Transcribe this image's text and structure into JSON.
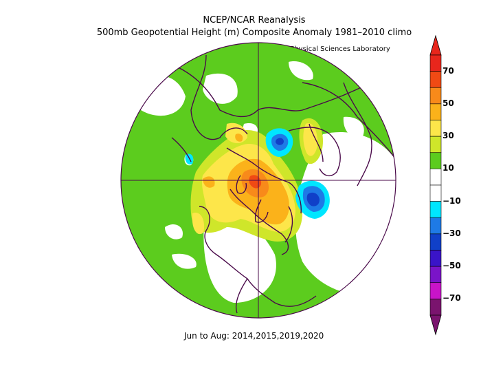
{
  "title_line1": "NCEP/NCAR Reanalysis",
  "title_line2": "500mb Geopotential Height (m) Composite Anomaly 1981–2010 climo",
  "credit": "NOAA Physical Sciences Laboratory",
  "caption": "Jun to Aug: 2014,2015,2019,2020",
  "colorbar": {
    "labels": [
      "70",
      "50",
      "30",
      "10",
      "−10",
      "−30",
      "−50",
      "−70"
    ],
    "colors": [
      "#e8261c",
      "#f04a14",
      "#f88a1a",
      "#fbb21a",
      "#fde64a",
      "#cfe62a",
      "#5ccc1e",
      "#ffffff",
      "#ffffff",
      "#00e6ff",
      "#1e7ae6",
      "#1040c8",
      "#3a14c8",
      "#7a14c8",
      "#c814c8",
      "#7a146e"
    ]
  },
  "map": {
    "projection": "north-polar-stereographic",
    "background_color": "#5ccc1e",
    "coastline_color": "#4a0a4a"
  }
}
